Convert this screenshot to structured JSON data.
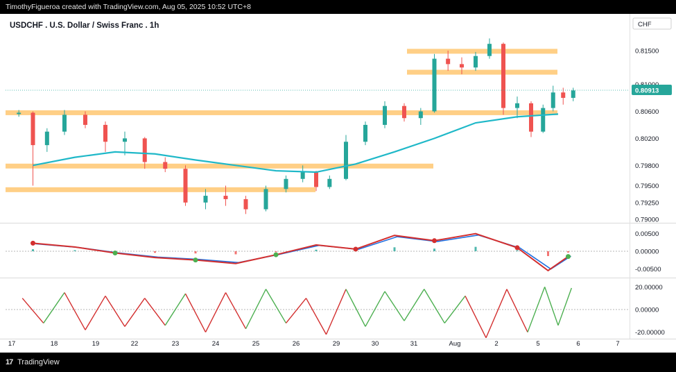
{
  "header": {
    "text": "TimothyFigueroa created with TradingView.com, Aug 05, 2025 10:52 UTC+8"
  },
  "footer": {
    "brand": "TradingView",
    "logo_glyph": "17"
  },
  "chart_data": {
    "type": "candlestick",
    "title": "USDCHF . U.S. Dollar / Swiss Franc . 1h",
    "currency": "CHF",
    "last_price": "0.80913",
    "colors": {
      "up": "#26a69a",
      "down": "#ef5350",
      "ma": "#1fb8c8",
      "zone": "#ffcc80",
      "osc_green": "#4caf50",
      "osc_red": "#d32f2f",
      "osc_blue": "#1e6fe0"
    },
    "price_axis": {
      "range": [
        0.7895,
        0.819
      ],
      "ticks": [
        "0.81500",
        "0.81000",
        "0.80600",
        "0.80200",
        "0.79800",
        "0.79500",
        "0.79250",
        "0.79000"
      ]
    },
    "x_axis": {
      "labels": [
        "17",
        "18",
        "19",
        "22",
        "23",
        "24",
        "25",
        "26",
        "29",
        "30",
        "31",
        "Aug",
        "2",
        "5",
        "6",
        "7"
      ]
    },
    "zones": [
      {
        "from_label": "31",
        "to_label": "5",
        "price": 0.8149
      },
      {
        "from_label": "31",
        "to_label": "5",
        "price": 0.8118
      },
      {
        "from_label": "17",
        "to_label": "5",
        "price": 0.8058
      },
      {
        "from_label": "17",
        "to_label": "31",
        "price": 0.7979
      },
      {
        "from_label": "17",
        "to_label": "26",
        "price": 0.7944
      }
    ],
    "anchors": [
      {
        "label": "17",
        "o": 0.8056,
        "h": 0.8062,
        "l": 0.8052,
        "c": 0.8058
      },
      {
        "label": "17",
        "o": 0.8058,
        "h": 0.806,
        "l": 0.795,
        "c": 0.801
      },
      {
        "label": "17",
        "o": 0.801,
        "h": 0.8035,
        "l": 0.8,
        "c": 0.803
      },
      {
        "label": "18",
        "o": 0.803,
        "h": 0.8062,
        "l": 0.8025,
        "c": 0.8055
      },
      {
        "label": "18",
        "o": 0.8055,
        "h": 0.806,
        "l": 0.8035,
        "c": 0.804
      },
      {
        "label": "19",
        "o": 0.804,
        "h": 0.8045,
        "l": 0.8,
        "c": 0.8015
      },
      {
        "label": "19",
        "o": 0.8015,
        "h": 0.803,
        "l": 0.7995,
        "c": 0.802
      },
      {
        "label": "22",
        "o": 0.802,
        "h": 0.8022,
        "l": 0.7975,
        "c": 0.7985
      },
      {
        "label": "22",
        "o": 0.7985,
        "h": 0.7992,
        "l": 0.797,
        "c": 0.7975
      },
      {
        "label": "23",
        "o": 0.7975,
        "h": 0.798,
        "l": 0.792,
        "c": 0.7925
      },
      {
        "label": "23",
        "o": 0.7925,
        "h": 0.7945,
        "l": 0.7915,
        "c": 0.7935
      },
      {
        "label": "24",
        "o": 0.7935,
        "h": 0.795,
        "l": 0.792,
        "c": 0.793
      },
      {
        "label": "24",
        "o": 0.793,
        "h": 0.7935,
        "l": 0.7908,
        "c": 0.7915
      },
      {
        "label": "25",
        "o": 0.7915,
        "h": 0.795,
        "l": 0.7912,
        "c": 0.7945
      },
      {
        "label": "25",
        "o": 0.7945,
        "h": 0.7965,
        "l": 0.794,
        "c": 0.796
      },
      {
        "label": "26",
        "o": 0.796,
        "h": 0.798,
        "l": 0.7955,
        "c": 0.797
      },
      {
        "label": "26",
        "o": 0.797,
        "h": 0.7972,
        "l": 0.7942,
        "c": 0.7948
      },
      {
        "label": "26",
        "o": 0.7948,
        "h": 0.7965,
        "l": 0.7945,
        "c": 0.796
      },
      {
        "label": "29",
        "o": 0.796,
        "h": 0.8025,
        "l": 0.7958,
        "c": 0.8015
      },
      {
        "label": "29",
        "o": 0.8015,
        "h": 0.8045,
        "l": 0.801,
        "c": 0.804
      },
      {
        "label": "30",
        "o": 0.804,
        "h": 0.8075,
        "l": 0.8035,
        "c": 0.8068
      },
      {
        "label": "30",
        "o": 0.8068,
        "h": 0.8072,
        "l": 0.8045,
        "c": 0.805
      },
      {
        "label": "31",
        "o": 0.805,
        "h": 0.8065,
        "l": 0.804,
        "c": 0.806
      },
      {
        "label": "31",
        "o": 0.806,
        "h": 0.8145,
        "l": 0.8058,
        "c": 0.8138
      },
      {
        "label": "31",
        "o": 0.8138,
        "h": 0.815,
        "l": 0.812,
        "c": 0.813
      },
      {
        "label": "Aug",
        "o": 0.813,
        "h": 0.814,
        "l": 0.8115,
        "c": 0.8125
      },
      {
        "label": "Aug",
        "o": 0.8125,
        "h": 0.8148,
        "l": 0.812,
        "c": 0.8142
      },
      {
        "label": "Aug",
        "o": 0.8142,
        "h": 0.8168,
        "l": 0.8138,
        "c": 0.816
      },
      {
        "label": "2",
        "o": 0.816,
        "h": 0.8162,
        "l": 0.8055,
        "c": 0.8065
      },
      {
        "label": "2",
        "o": 0.8065,
        "h": 0.8082,
        "l": 0.805,
        "c": 0.8072
      },
      {
        "label": "2",
        "o": 0.8072,
        "h": 0.8075,
        "l": 0.8022,
        "c": 0.803
      },
      {
        "label": "5",
        "o": 0.803,
        "h": 0.807,
        "l": 0.8028,
        "c": 0.8065
      },
      {
        "label": "5",
        "o": 0.8065,
        "h": 0.8098,
        "l": 0.806,
        "c": 0.8088
      },
      {
        "label": "5",
        "o": 0.8088,
        "h": 0.8095,
        "l": 0.807,
        "c": 0.808
      },
      {
        "label": "5",
        "o": 0.808,
        "h": 0.8095,
        "l": 0.8075,
        "c": 0.8091
      }
    ],
    "moving_average": [
      {
        "label": "17",
        "v": 0.798
      },
      {
        "label": "18",
        "v": 0.7992
      },
      {
        "label": "19",
        "v": 0.8
      },
      {
        "label": "22",
        "v": 0.7997
      },
      {
        "label": "23",
        "v": 0.7988
      },
      {
        "label": "24",
        "v": 0.798
      },
      {
        "label": "25",
        "v": 0.7972
      },
      {
        "label": "26",
        "v": 0.797
      },
      {
        "label": "29",
        "v": 0.7982
      },
      {
        "label": "30",
        "v": 0.8
      },
      {
        "label": "31",
        "v": 0.802
      },
      {
        "label": "Aug",
        "v": 0.8043
      },
      {
        "label": "2",
        "v": 0.8052
      },
      {
        "label": "5",
        "v": 0.8056
      }
    ],
    "oscillator1": {
      "range": [
        -0.0075,
        0.0075
      ],
      "ticks": [
        "0.00500",
        "0.00000",
        "-0.00500"
      ],
      "points": [
        {
          "label": "17",
          "v": 0.0023
        },
        {
          "label": "18",
          "v": 0.0012
        },
        {
          "label": "19",
          "v": -0.0005
        },
        {
          "label": "22",
          "v": -0.0018
        },
        {
          "label": "23",
          "v": -0.0025
        },
        {
          "label": "24",
          "v": -0.0035
        },
        {
          "label": "25",
          "v": -0.001
        },
        {
          "label": "26",
          "v": 0.0018
        },
        {
          "label": "29",
          "v": 0.0006
        },
        {
          "label": "30",
          "v": 0.0045
        },
        {
          "label": "31",
          "v": 0.003
        },
        {
          "label": "Aug",
          "v": 0.005
        },
        {
          "label": "2",
          "v": 0.001
        },
        {
          "label": "5",
          "v": -0.0055
        },
        {
          "label": "5",
          "v": -0.0015
        }
      ]
    },
    "oscillator2": {
      "range": [
        -27,
        27
      ],
      "ticks": [
        "20.00000",
        "0.00000",
        "-20.00000"
      ],
      "points": [
        {
          "label": "17",
          "v": 10
        },
        {
          "label": "17",
          "v": -12
        },
        {
          "label": "18",
          "v": 15
        },
        {
          "label": "18",
          "v": -18
        },
        {
          "label": "19",
          "v": 12
        },
        {
          "label": "19",
          "v": -15
        },
        {
          "label": "22",
          "v": 10
        },
        {
          "label": "22",
          "v": -14
        },
        {
          "label": "23",
          "v": 14
        },
        {
          "label": "23",
          "v": -20
        },
        {
          "label": "24",
          "v": 15
        },
        {
          "label": "24",
          "v": -17
        },
        {
          "label": "25",
          "v": 18
        },
        {
          "label": "25",
          "v": -12
        },
        {
          "label": "26",
          "v": 10
        },
        {
          "label": "26",
          "v": -22
        },
        {
          "label": "29",
          "v": 18
        },
        {
          "label": "29",
          "v": -15
        },
        {
          "label": "30",
          "v": 16
        },
        {
          "label": "30",
          "v": -10
        },
        {
          "label": "31",
          "v": 18
        },
        {
          "label": "31",
          "v": -12
        },
        {
          "label": "Aug",
          "v": 12
        },
        {
          "label": "Aug",
          "v": -25
        },
        {
          "label": "2",
          "v": 18
        },
        {
          "label": "2",
          "v": -20
        },
        {
          "label": "5",
          "v": 20
        },
        {
          "label": "5",
          "v": -14
        },
        {
          "label": "5",
          "v": 19
        }
      ]
    }
  }
}
